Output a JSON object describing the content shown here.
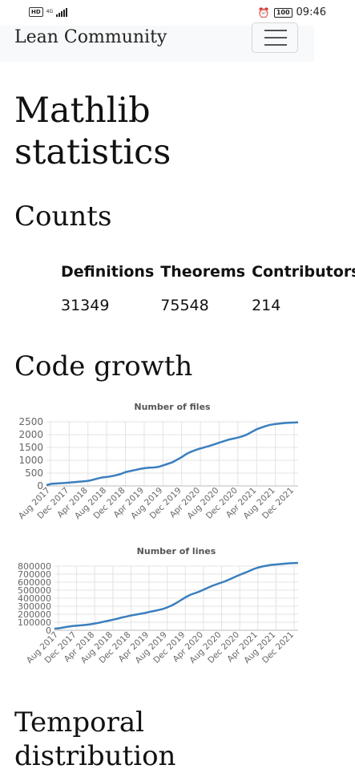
{
  "status_bar": {
    "network": "4G",
    "battery": "100",
    "time": "09:46"
  },
  "navbar": {
    "brand": "Lean Community"
  },
  "page": {
    "title_line1": "Mathlib",
    "title_line2": "statistics",
    "counts_heading": "Counts",
    "code_growth_heading": "Code growth",
    "temporal_heading_line1": "Temporal",
    "temporal_heading_line2": "distribution"
  },
  "counts": {
    "headers": [
      "Definitions",
      "Theorems",
      "Contributors"
    ],
    "values": [
      "31349",
      "75548",
      "214"
    ]
  },
  "colors": {
    "series": "#3a7fbd",
    "grid": "#e3e3e3",
    "navbar_bg": "#f8f9fa"
  },
  "chart_data": [
    {
      "type": "line",
      "title": "Number of files",
      "x_tick_labels": [
        "Aug 2017",
        "Dec 2017",
        "Apr 2018",
        "Aug 2018",
        "Dec 2018",
        "Apr 2019",
        "Aug 2019",
        "Dec 2019",
        "Apr 2020",
        "Aug 2020",
        "Dec 2020",
        "Apr 2021",
        "Aug 2021",
        "Dec 2021"
      ],
      "y_ticks": [
        0,
        500,
        1000,
        1500,
        2000,
        2500
      ],
      "ylim": [
        0,
        2500
      ],
      "x": [
        0,
        1,
        2,
        3,
        4,
        5,
        6,
        7,
        8,
        9,
        10,
        11,
        12,
        13,
        14,
        15,
        16,
        17,
        18,
        19,
        20,
        21,
        22,
        23,
        24,
        25,
        26,
        27,
        28,
        29,
        30,
        31,
        32,
        33,
        34,
        35,
        36,
        37,
        38,
        39,
        40,
        41,
        42,
        43,
        44,
        45,
        46,
        47,
        48,
        49,
        50,
        51,
        52,
        53,
        54
      ],
      "values": [
        30,
        80,
        95,
        105,
        115,
        130,
        150,
        165,
        180,
        200,
        240,
        290,
        330,
        350,
        380,
        420,
        470,
        540,
        580,
        620,
        660,
        690,
        710,
        720,
        740,
        800,
        860,
        920,
        1020,
        1120,
        1240,
        1330,
        1400,
        1460,
        1510,
        1560,
        1620,
        1680,
        1740,
        1800,
        1840,
        1880,
        1930,
        2000,
        2100,
        2200,
        2270,
        2330,
        2380,
        2410,
        2430,
        2450,
        2460,
        2470,
        2480
      ]
    },
    {
      "type": "line",
      "title": "Number of lines",
      "x_tick_labels": [
        "Aug 2017",
        "Dec 2017",
        "Apr 2018",
        "Aug 2018",
        "Dec 2018",
        "Apr 2019",
        "Aug 2019",
        "Dec 2019",
        "Apr 2020",
        "Aug 2020",
        "Dec 2020",
        "Apr 2021",
        "Aug 2021",
        "Dec 2021"
      ],
      "y_ticks": [
        0,
        100000,
        200000,
        300000,
        400000,
        500000,
        600000,
        700000,
        800000
      ],
      "ylim": [
        0,
        800000
      ],
      "x": [
        0,
        1,
        2,
        3,
        4,
        5,
        6,
        7,
        8,
        9,
        10,
        11,
        12,
        13,
        14,
        15,
        16,
        17,
        18,
        19,
        20,
        21,
        22,
        23,
        24,
        25,
        26,
        27,
        28,
        29,
        30,
        31,
        32,
        33,
        34,
        35,
        36,
        37,
        38,
        39,
        40,
        41,
        42,
        43,
        44,
        45,
        46,
        47,
        48,
        49,
        50,
        51,
        52,
        53,
        54
      ],
      "values": [
        20000,
        25000,
        35000,
        45000,
        52000,
        58000,
        62000,
        68000,
        75000,
        85000,
        95000,
        108000,
        120000,
        132000,
        145000,
        160000,
        172000,
        185000,
        195000,
        205000,
        215000,
        228000,
        240000,
        252000,
        265000,
        285000,
        310000,
        340000,
        375000,
        410000,
        440000,
        460000,
        480000,
        505000,
        530000,
        555000,
        575000,
        595000,
        615000,
        640000,
        665000,
        690000,
        712000,
        735000,
        760000,
        780000,
        795000,
        805000,
        815000,
        820000,
        825000,
        830000,
        835000,
        838000,
        840000
      ]
    }
  ]
}
